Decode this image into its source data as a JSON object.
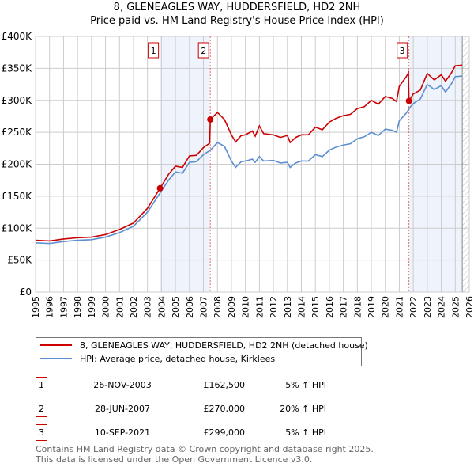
{
  "chart_data": {
    "type": "line",
    "title": "8, GLENEAGLES WAY, HUDDERSFIELD, HD2 2NH",
    "subtitle": "Price paid vs. HM Land Registry's House Price Index (HPI)",
    "xlim": [
      1995,
      2026
    ],
    "ylim": [
      0,
      400000
    ],
    "x_ticks": [
      "1995",
      "1996",
      "1997",
      "1998",
      "1999",
      "2000",
      "2001",
      "2002",
      "2003",
      "2004",
      "2005",
      "2006",
      "2007",
      "2008",
      "2009",
      "2010",
      "2011",
      "2012",
      "2013",
      "2014",
      "2015",
      "2016",
      "2017",
      "2018",
      "2019",
      "2020",
      "2021",
      "2022",
      "2023",
      "2024",
      "2025",
      "2026"
    ],
    "y_ticks": [
      {
        "v": 0,
        "label": "£0"
      },
      {
        "v": 50000,
        "label": "£50K"
      },
      {
        "v": 100000,
        "label": "£100K"
      },
      {
        "v": 150000,
        "label": "£150K"
      },
      {
        "v": 200000,
        "label": "£200K"
      },
      {
        "v": 250000,
        "label": "£250K"
      },
      {
        "v": 300000,
        "label": "£300K"
      },
      {
        "v": 350000,
        "label": "£350K"
      },
      {
        "v": 400000,
        "label": "£400K"
      }
    ],
    "grid": true,
    "series": [
      {
        "name": "8, GLENEAGLES WAY, HUDDERSFIELD, HD2 2NH (detached house)",
        "color": "#cc0000",
        "points": [
          [
            1995,
            81
          ],
          [
            1996,
            80
          ],
          [
            1997,
            83
          ],
          [
            1998,
            85
          ],
          [
            1999,
            86
          ],
          [
            2000,
            90
          ],
          [
            2001,
            98
          ],
          [
            2002,
            108
          ],
          [
            2003,
            131
          ],
          [
            2003.9,
            162.5
          ],
          [
            2004.5,
            184
          ],
          [
            2005,
            197
          ],
          [
            2005.5,
            195
          ],
          [
            2006,
            213
          ],
          [
            2006.5,
            214
          ],
          [
            2007,
            226
          ],
          [
            2007.45,
            233
          ],
          [
            2007.49,
            270
          ],
          [
            2008,
            281
          ],
          [
            2008.5,
            270
          ],
          [
            2009,
            246
          ],
          [
            2009.3,
            235
          ],
          [
            2009.7,
            245
          ],
          [
            2010,
            246
          ],
          [
            2010.5,
            252
          ],
          [
            2010.7,
            244
          ],
          [
            2011,
            260
          ],
          [
            2011.3,
            248
          ],
          [
            2012,
            246
          ],
          [
            2012.5,
            242
          ],
          [
            2013,
            245
          ],
          [
            2013.2,
            234
          ],
          [
            2013.6,
            242
          ],
          [
            2014,
            246
          ],
          [
            2014.5,
            246
          ],
          [
            2015,
            258
          ],
          [
            2015.5,
            254
          ],
          [
            2016,
            266
          ],
          [
            2016.5,
            272
          ],
          [
            2017,
            276
          ],
          [
            2017.5,
            278
          ],
          [
            2018,
            287
          ],
          [
            2018.5,
            290
          ],
          [
            2019,
            300
          ],
          [
            2019.5,
            294
          ],
          [
            2020,
            306
          ],
          [
            2020.5,
            303
          ],
          [
            2020.8,
            298
          ],
          [
            2021,
            322
          ],
          [
            2021.5,
            337
          ],
          [
            2021.65,
            343
          ],
          [
            2021.69,
            299
          ],
          [
            2022,
            310
          ],
          [
            2022.5,
            316
          ],
          [
            2023,
            342
          ],
          [
            2023.5,
            332
          ],
          [
            2024,
            340
          ],
          [
            2024.3,
            330
          ],
          [
            2024.7,
            342
          ],
          [
            2025,
            354
          ],
          [
            2025.5,
            355
          ]
        ]
      },
      {
        "name": "HPI: Average price, detached house, Kirklees",
        "color": "#5b8fd0",
        "points": [
          [
            1995,
            77
          ],
          [
            1996,
            76
          ],
          [
            1997,
            79
          ],
          [
            1998,
            81
          ],
          [
            1999,
            82
          ],
          [
            2000,
            86
          ],
          [
            2001,
            93
          ],
          [
            2002,
            103
          ],
          [
            2003,
            125
          ],
          [
            2003.9,
            155
          ],
          [
            2004.5,
            175
          ],
          [
            2005,
            188
          ],
          [
            2005.5,
            186
          ],
          [
            2006,
            203
          ],
          [
            2006.5,
            204
          ],
          [
            2007,
            215
          ],
          [
            2007.5,
            222
          ],
          [
            2008,
            234
          ],
          [
            2008.5,
            228
          ],
          [
            2009,
            205
          ],
          [
            2009.3,
            195
          ],
          [
            2009.7,
            204
          ],
          [
            2010,
            205
          ],
          [
            2010.5,
            208
          ],
          [
            2010.7,
            203
          ],
          [
            2011,
            212
          ],
          [
            2011.3,
            205
          ],
          [
            2012,
            206
          ],
          [
            2012.5,
            202
          ],
          [
            2013,
            203
          ],
          [
            2013.2,
            195
          ],
          [
            2013.6,
            202
          ],
          [
            2014,
            205
          ],
          [
            2014.5,
            205
          ],
          [
            2015,
            215
          ],
          [
            2015.5,
            212
          ],
          [
            2016,
            222
          ],
          [
            2016.5,
            227
          ],
          [
            2017,
            230
          ],
          [
            2017.5,
            232
          ],
          [
            2018,
            240
          ],
          [
            2018.5,
            243
          ],
          [
            2019,
            250
          ],
          [
            2019.5,
            245
          ],
          [
            2020,
            255
          ],
          [
            2020.5,
            253
          ],
          [
            2020.8,
            250
          ],
          [
            2021,
            268
          ],
          [
            2021.5,
            280
          ],
          [
            2021.8,
            290
          ],
          [
            2022,
            295
          ],
          [
            2022.5,
            302
          ],
          [
            2023,
            325
          ],
          [
            2023.5,
            317
          ],
          [
            2024,
            323
          ],
          [
            2024.3,
            313
          ],
          [
            2024.7,
            325
          ],
          [
            2025,
            337
          ],
          [
            2025.5,
            338
          ]
        ]
      }
    ],
    "y_units": "thousands GBP",
    "sales": [
      {
        "label": "1",
        "x": 2003.9,
        "y": 162.5
      },
      {
        "label": "2",
        "x": 2007.49,
        "y": 270
      },
      {
        "label": "3",
        "x": 2021.69,
        "y": 299
      }
    ],
    "shaded": [
      [
        2003.9,
        2007.49
      ],
      [
        2021.69,
        2025.5
      ]
    ],
    "projection_start": 2025.5,
    "legend": "below"
  },
  "table": [
    {
      "n": "1",
      "date": "26-NOV-2003",
      "price": "£162,500",
      "hpi": "5% ↑ HPI"
    },
    {
      "n": "2",
      "date": "28-JUN-2007",
      "price": "£270,000",
      "hpi": "20% ↑ HPI"
    },
    {
      "n": "3",
      "date": "10-SEP-2021",
      "price": "£299,000",
      "hpi": "5% ↑ HPI"
    }
  ],
  "footer": [
    "Contains HM Land Registry data © Crown copyright and database right 2025.",
    "This data is licensed under the Open Government Licence v3.0."
  ]
}
